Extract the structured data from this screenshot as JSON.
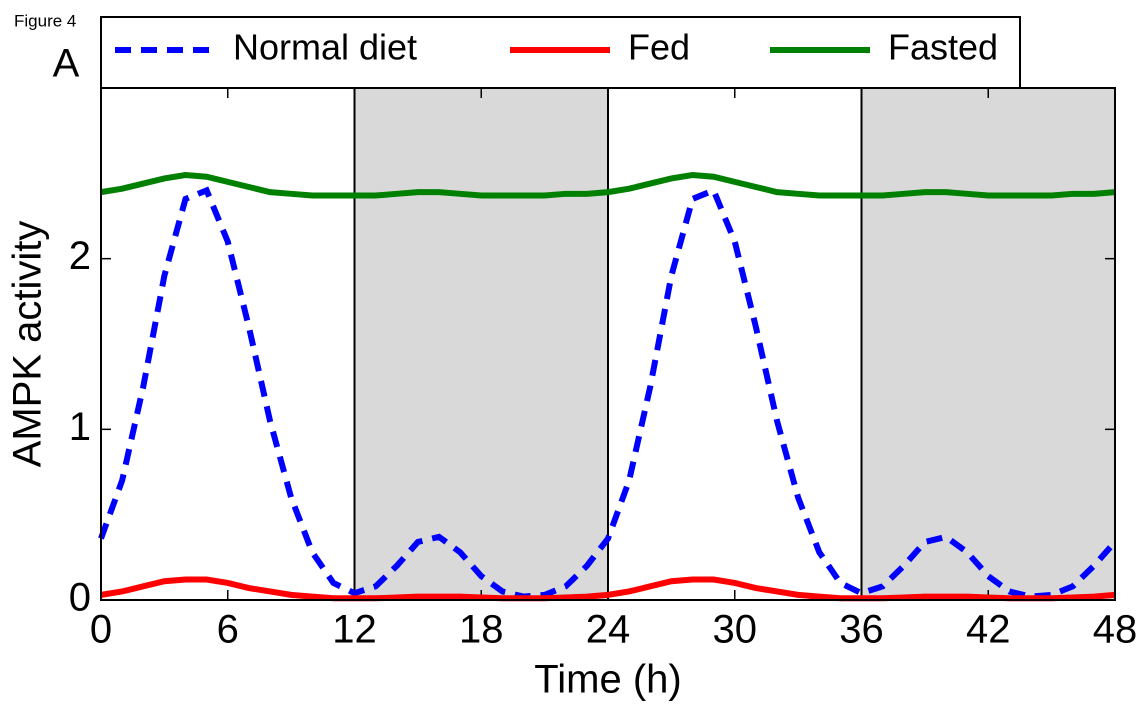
{
  "chart_data": {
    "type": "line",
    "figure_label": "Figure 4",
    "panel_label": "A",
    "xlabel": "Time (h)",
    "ylabel": "AMPK activity",
    "x": [
      0,
      1,
      2,
      3,
      4,
      5,
      6,
      7,
      8,
      9,
      10,
      11,
      12,
      13,
      14,
      15,
      16,
      17,
      18,
      19,
      20,
      21,
      22,
      23,
      24,
      25,
      26,
      27,
      28,
      29,
      30,
      31,
      32,
      33,
      34,
      35,
      36,
      37,
      38,
      39,
      40,
      41,
      42,
      43,
      44,
      45,
      46,
      47,
      48
    ],
    "series": [
      {
        "name": "Normal diet",
        "color": "#0000ff",
        "dashed": true,
        "values": [
          0.36,
          0.7,
          1.25,
          1.9,
          2.35,
          2.4,
          2.1,
          1.6,
          1.05,
          0.6,
          0.28,
          0.1,
          0.04,
          0.08,
          0.2,
          0.34,
          0.37,
          0.28,
          0.14,
          0.05,
          0.02,
          0.03,
          0.08,
          0.2,
          0.36,
          0.7,
          1.25,
          1.9,
          2.35,
          2.4,
          2.1,
          1.6,
          1.05,
          0.6,
          0.28,
          0.1,
          0.04,
          0.08,
          0.2,
          0.34,
          0.37,
          0.28,
          0.14,
          0.05,
          0.02,
          0.03,
          0.08,
          0.2,
          0.34
        ]
      },
      {
        "name": "Fed",
        "color": "#ff0000",
        "dashed": false,
        "values": [
          0.03,
          0.05,
          0.08,
          0.11,
          0.12,
          0.12,
          0.1,
          0.07,
          0.05,
          0.03,
          0.02,
          0.01,
          0.01,
          0.01,
          0.015,
          0.02,
          0.02,
          0.02,
          0.015,
          0.01,
          0.01,
          0.01,
          0.015,
          0.02,
          0.03,
          0.05,
          0.08,
          0.11,
          0.12,
          0.12,
          0.1,
          0.07,
          0.05,
          0.03,
          0.02,
          0.01,
          0.01,
          0.01,
          0.015,
          0.02,
          0.02,
          0.02,
          0.015,
          0.01,
          0.01,
          0.01,
          0.015,
          0.02,
          0.03
        ]
      },
      {
        "name": "Fasted",
        "color": "#008000",
        "dashed": false,
        "values": [
          2.39,
          2.41,
          2.44,
          2.47,
          2.49,
          2.48,
          2.45,
          2.42,
          2.39,
          2.38,
          2.37,
          2.37,
          2.37,
          2.37,
          2.38,
          2.39,
          2.39,
          2.38,
          2.37,
          2.37,
          2.37,
          2.37,
          2.38,
          2.38,
          2.39,
          2.41,
          2.44,
          2.47,
          2.49,
          2.48,
          2.45,
          2.42,
          2.39,
          2.38,
          2.37,
          2.37,
          2.37,
          2.37,
          2.38,
          2.39,
          2.39,
          2.38,
          2.37,
          2.37,
          2.37,
          2.37,
          2.38,
          2.38,
          2.39
        ]
      }
    ],
    "shaded_intervals": [
      [
        12,
        24
      ],
      [
        36,
        48
      ]
    ],
    "shade_color": "#d9d9d9",
    "xlim": [
      0,
      48
    ],
    "xticks": [
      0,
      6,
      12,
      18,
      24,
      30,
      36,
      42,
      48
    ],
    "ylim": [
      0,
      3
    ],
    "yticks": [
      0,
      1,
      2
    ],
    "legend": "top"
  }
}
